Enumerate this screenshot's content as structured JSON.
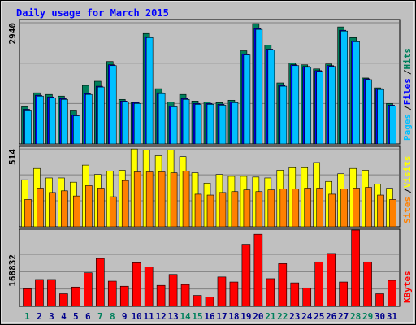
{
  "chart_data": {
    "type": "bar",
    "title": "Daily usage for March 2015",
    "categories": [
      "1",
      "2",
      "3",
      "4",
      "5",
      "6",
      "7",
      "8",
      "9",
      "10",
      "11",
      "12",
      "13",
      "14",
      "15",
      "16",
      "17",
      "18",
      "19",
      "20",
      "21",
      "22",
      "23",
      "24",
      "25",
      "26",
      "27",
      "28",
      "29",
      "30",
      "31"
    ],
    "weekend_indices": [
      0,
      6,
      7,
      13,
      14,
      20,
      21,
      27,
      28
    ],
    "weekday_color": "#00008b",
    "weekend_color": "#00805c",
    "separator": "/",
    "grid_divisions": 3,
    "panels": [
      {
        "ylim": [
          0,
          3020
        ],
        "yticks": [
          2940
        ],
        "series": [
          {
            "name": "Hits",
            "color": "#00805c",
            "values": [
              900,
              1240,
              1200,
              1160,
              820,
              1420,
              1520,
              2000,
              1080,
              1020,
              2680,
              1340,
              1020,
              1200,
              1040,
              1020,
              1000,
              1060,
              2260,
              2920,
              2400,
              1480,
              1960,
              1920,
              1820,
              1940,
              2840,
              2580,
              1600,
              1360,
              980
            ]
          },
          {
            "name": "Files",
            "color": "#0000ff",
            "values": [
              840,
              1180,
              1140,
              1100,
              700,
              1220,
              1400,
              1920,
              1040,
              1000,
              2600,
              1240,
              920,
              1100,
              980,
              980,
              960,
              1020,
              2180,
              2800,
              2300,
              1420,
              1920,
              1880,
              1780,
              1900,
              2760,
              2500,
              1580,
              1340,
              940
            ]
          },
          {
            "name": "Pages",
            "color": "#00c0ff",
            "values": [
              820,
              1160,
              1120,
              1080,
              680,
              1200,
              1380,
              1900,
              1020,
              980,
              2580,
              1220,
              900,
              1080,
              960,
              960,
              940,
              1000,
              2160,
              2780,
              2280,
              1400,
              1900,
              1860,
              1760,
              1880,
              2740,
              2480,
              1560,
              1320,
              920
            ]
          }
        ]
      },
      {
        "ylim": [
          0,
          531
        ],
        "yticks": [
          514
        ],
        "series": [
          {
            "name": "Visits",
            "color": "#ffff00",
            "values": [
              310,
              385,
              322,
              322,
              294,
              407,
              345,
              367,
              373,
              514,
              508,
              469,
              508,
              463,
              356,
              288,
              345,
              333,
              333,
              328,
              322,
              373,
              390,
              390,
              424,
              299,
              350,
              385,
              373,
              282,
              254
            ]
          },
          {
            "name": "Sites",
            "color": "#ff8000",
            "values": [
              180,
              255,
              226,
              237,
              203,
              271,
              255,
              198,
              305,
              362,
              362,
              362,
              356,
              367,
              215,
              209,
              226,
              232,
              243,
              232,
              243,
              249,
              249,
              255,
              255,
              215,
              249,
              255,
              260,
              209,
              180
            ]
          }
        ]
      },
      {
        "ylim": [
          0,
          250500
        ],
        "yticks": [
          168832
        ],
        "series": [
          {
            "name": "KBytes",
            "color": "#ff0000",
            "values": [
              57200,
              87100,
              87100,
              40800,
              62600,
              108900,
              155200,
              81700,
              65300,
              141500,
              128000,
              68000,
              103500,
              70800,
              35400,
              30000,
              95300,
              79000,
              201500,
              234200,
              89800,
              138800,
              76200,
              59900,
              144300,
              171600,
              79000,
              247800,
              144300,
              40800,
              84400
            ]
          }
        ]
      }
    ]
  }
}
